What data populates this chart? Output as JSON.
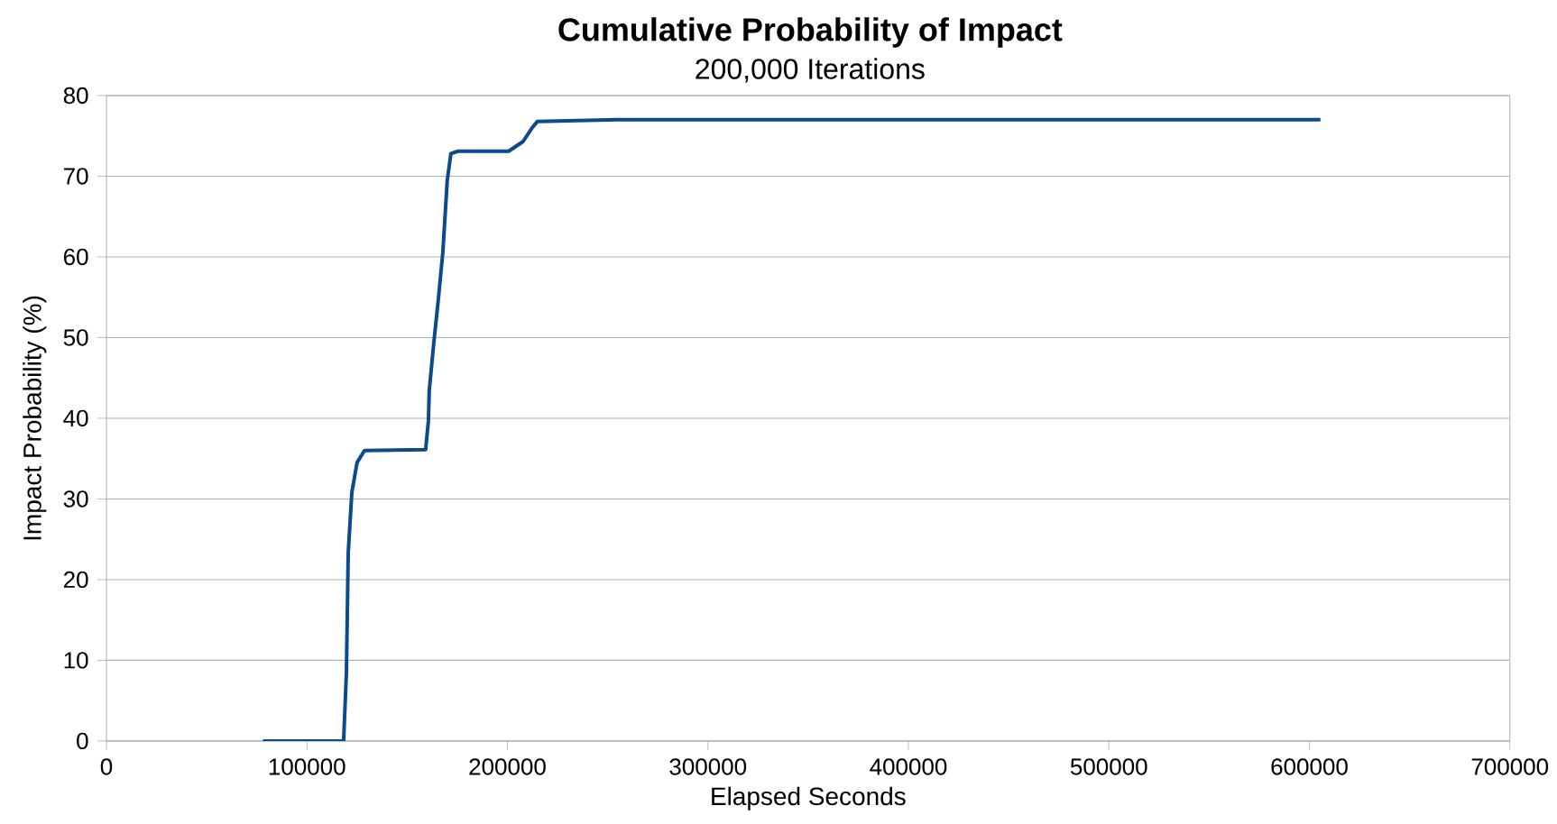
{
  "chart_data": {
    "type": "line",
    "title": "Cumulative Probability of Impact",
    "subtitle": "200,000 Iterations",
    "xlabel": "Elapsed Seconds",
    "ylabel": "Impact Probability (%)",
    "x": [
      78000,
      118300,
      119700,
      120600,
      122400,
      125000,
      128700,
      159200,
      160600,
      161000,
      163300,
      165500,
      167800,
      170000,
      171800,
      175400,
      200600,
      207800,
      212300,
      215000,
      255000,
      605500
    ],
    "series": [
      {
        "color": "#0b4a8b",
        "values": [
          0,
          0,
          8.5,
          23.3,
          30.8,
          34.5,
          36.0,
          36.1,
          39.7,
          43.4,
          49.4,
          54.6,
          60.6,
          69.5,
          72.8,
          73.1,
          73.1,
          74.3,
          76.0,
          76.8,
          77.0,
          77.0
        ]
      }
    ],
    "xlim": [
      0,
      700000
    ],
    "ylim": [
      0,
      80
    ],
    "xticks": [
      0,
      100000,
      200000,
      300000,
      400000,
      500000,
      600000,
      700000
    ],
    "yticks": [
      0,
      10,
      20,
      30,
      40,
      50,
      60,
      70,
      80
    ],
    "grid": "y",
    "marker": "none",
    "line_style": "solid"
  }
}
